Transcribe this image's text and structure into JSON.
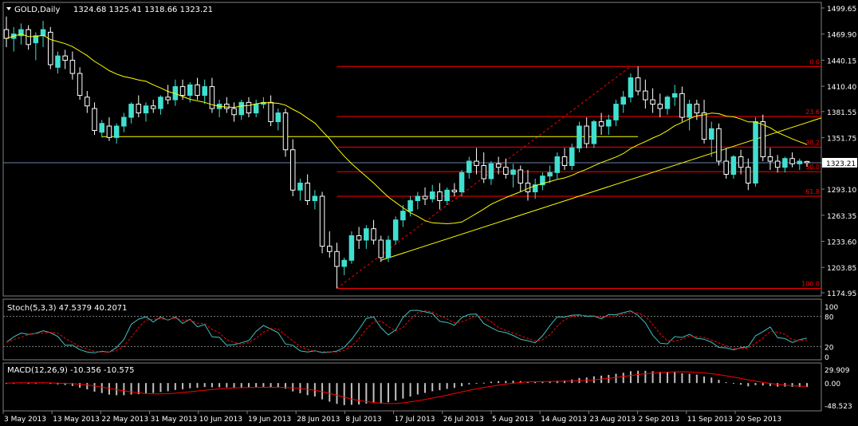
{
  "header": {
    "title": "GOLD,Daily",
    "ohlc": "1324.68 1325.41 1318.66 1323.21"
  },
  "colors": {
    "background": "#000000",
    "frame": "#808080",
    "bull": "#40e0d0",
    "bear": "#ffffff",
    "ma": "#ffff00",
    "fib": "#ff0000",
    "price_line": "#6a80a8",
    "stoch_main": "#40c0c0",
    "stoch_signal": "#ff0000",
    "macd_hist": "#c0c0c0",
    "macd_signal": "#ff0000"
  },
  "price_axis": {
    "ticks": [
      "1499.65",
      "1469.90",
      "1440.15",
      "1410.40",
      "1381.55",
      "1351.75",
      "1323.21",
      "1293.10",
      "1263.35",
      "1233.60",
      "1203.85",
      "1174.95"
    ],
    "current": "1323.21"
  },
  "fib_labels": [
    "0.0",
    "23.6",
    "38.2",
    "50.0",
    "61.8",
    "100.0"
  ],
  "date_labels": [
    "3 May 2013",
    "13 May 2013",
    "22 May 2013",
    "31 May 2013",
    "10 Jun 2013",
    "19 Jun 2013",
    "28 Jun 2013",
    "8 Jul 2013",
    "17 Jul 2013",
    "26 Jul 2013",
    "5 Aug 2013",
    "14 Aug 2013",
    "23 Aug 2013",
    "2 Sep 2013",
    "11 Sep 2013",
    "20 Sep 2013"
  ],
  "stoch": {
    "label": "Stoch(5,3,3) 47.5379 40.2071",
    "ticks": [
      "100",
      "80",
      "20",
      "0"
    ]
  },
  "macd": {
    "label": "MACD(12,26,9) -10.356 -10.575",
    "ticks": [
      "29.909",
      "0.00",
      "-48.523"
    ]
  },
  "chart_data": {
    "type": "candlestick",
    "ylim": [
      1174.95,
      1499.65
    ],
    "candles": [
      [
        1475,
        1490,
        1455,
        1465
      ],
      [
        1465,
        1478,
        1450,
        1470
      ],
      [
        1468,
        1482,
        1458,
        1475
      ],
      [
        1475,
        1480,
        1452,
        1458
      ],
      [
        1460,
        1472,
        1440,
        1468
      ],
      [
        1468,
        1485,
        1455,
        1475
      ],
      [
        1472,
        1478,
        1430,
        1435
      ],
      [
        1432,
        1450,
        1425,
        1445
      ],
      [
        1445,
        1452,
        1430,
        1440
      ],
      [
        1440,
        1450,
        1418,
        1425
      ],
      [
        1425,
        1432,
        1395,
        1400
      ],
      [
        1398,
        1405,
        1380,
        1388
      ],
      [
        1385,
        1392,
        1355,
        1360
      ],
      [
        1358,
        1372,
        1352,
        1368
      ],
      [
        1365,
        1375,
        1348,
        1352
      ],
      [
        1352,
        1368,
        1345,
        1365
      ],
      [
        1365,
        1380,
        1358,
        1375
      ],
      [
        1375,
        1392,
        1368,
        1390
      ],
      [
        1390,
        1400,
        1375,
        1380
      ],
      [
        1380,
        1392,
        1370,
        1388
      ],
      [
        1388,
        1395,
        1380,
        1385
      ],
      [
        1385,
        1400,
        1378,
        1398
      ],
      [
        1398,
        1412,
        1390,
        1395
      ],
      [
        1395,
        1418,
        1388,
        1410
      ],
      [
        1410,
        1418,
        1395,
        1400
      ],
      [
        1400,
        1415,
        1392,
        1412
      ],
      [
        1412,
        1420,
        1395,
        1400
      ],
      [
        1400,
        1418,
        1390,
        1410
      ],
      [
        1410,
        1420,
        1380,
        1385
      ],
      [
        1385,
        1395,
        1375,
        1390
      ],
      [
        1390,
        1398,
        1380,
        1385
      ],
      [
        1385,
        1392,
        1370,
        1378
      ],
      [
        1378,
        1395,
        1372,
        1392
      ],
      [
        1392,
        1398,
        1375,
        1380
      ],
      [
        1380,
        1395,
        1375,
        1390
      ],
      [
        1390,
        1398,
        1385,
        1392
      ],
      [
        1392,
        1400,
        1365,
        1370
      ],
      [
        1370,
        1385,
        1360,
        1380
      ],
      [
        1380,
        1385,
        1330,
        1338
      ],
      [
        1338,
        1350,
        1285,
        1292
      ],
      [
        1292,
        1305,
        1280,
        1300
      ],
      [
        1300,
        1310,
        1275,
        1280
      ],
      [
        1280,
        1292,
        1270,
        1285
      ],
      [
        1285,
        1290,
        1220,
        1228
      ],
      [
        1228,
        1245,
        1215,
        1222
      ],
      [
        1222,
        1232,
        1180,
        1205
      ],
      [
        1205,
        1215,
        1195,
        1212
      ],
      [
        1212,
        1245,
        1208,
        1240
      ],
      [
        1240,
        1250,
        1225,
        1235
      ],
      [
        1235,
        1252,
        1225,
        1248
      ],
      [
        1248,
        1258,
        1230,
        1235
      ],
      [
        1235,
        1240,
        1210,
        1215
      ],
      [
        1215,
        1240,
        1210,
        1235
      ],
      [
        1235,
        1262,
        1230,
        1258
      ],
      [
        1258,
        1275,
        1250,
        1268
      ],
      [
        1268,
        1285,
        1262,
        1280
      ],
      [
        1280,
        1290,
        1270,
        1285
      ],
      [
        1285,
        1295,
        1275,
        1282
      ],
      [
        1282,
        1298,
        1278,
        1290
      ],
      [
        1290,
        1300,
        1270,
        1280
      ],
      [
        1280,
        1295,
        1275,
        1292
      ],
      [
        1292,
        1300,
        1285,
        1290
      ],
      [
        1290,
        1315,
        1285,
        1312
      ],
      [
        1312,
        1330,
        1305,
        1325
      ],
      [
        1325,
        1340,
        1310,
        1320
      ],
      [
        1320,
        1335,
        1300,
        1305
      ],
      [
        1305,
        1325,
        1298,
        1322
      ],
      [
        1322,
        1330,
        1310,
        1318
      ],
      [
        1318,
        1328,
        1305,
        1310
      ],
      [
        1310,
        1322,
        1295,
        1315
      ],
      [
        1315,
        1320,
        1290,
        1300
      ],
      [
        1300,
        1315,
        1280,
        1290
      ],
      [
        1290,
        1305,
        1282,
        1298
      ],
      [
        1298,
        1312,
        1292,
        1308
      ],
      [
        1308,
        1320,
        1300,
        1312
      ],
      [
        1312,
        1335,
        1305,
        1330
      ],
      [
        1330,
        1340,
        1315,
        1320
      ],
      [
        1320,
        1345,
        1315,
        1340
      ],
      [
        1340,
        1370,
        1335,
        1365
      ],
      [
        1365,
        1375,
        1340,
        1345
      ],
      [
        1345,
        1372,
        1340,
        1370
      ],
      [
        1370,
        1380,
        1355,
        1365
      ],
      [
        1365,
        1378,
        1355,
        1372
      ],
      [
        1372,
        1395,
        1365,
        1390
      ],
      [
        1390,
        1405,
        1380,
        1398
      ],
      [
        1398,
        1425,
        1392,
        1420
      ],
      [
        1420,
        1433,
        1400,
        1405
      ],
      [
        1405,
        1418,
        1385,
        1395
      ],
      [
        1395,
        1408,
        1380,
        1390
      ],
      [
        1390,
        1402,
        1375,
        1385
      ],
      [
        1385,
        1400,
        1378,
        1398
      ],
      [
        1398,
        1412,
        1388,
        1402
      ],
      [
        1402,
        1410,
        1370,
        1375
      ],
      [
        1375,
        1395,
        1360,
        1390
      ],
      [
        1390,
        1395,
        1372,
        1380
      ],
      [
        1380,
        1395,
        1345,
        1350
      ],
      [
        1350,
        1370,
        1330,
        1362
      ],
      [
        1362,
        1368,
        1320,
        1325
      ],
      [
        1325,
        1340,
        1305,
        1310
      ],
      [
        1310,
        1332,
        1305,
        1330
      ],
      [
        1330,
        1338,
        1310,
        1318
      ],
      [
        1318,
        1328,
        1292,
        1300
      ],
      [
        1300,
        1375,
        1296,
        1370
      ],
      [
        1370,
        1378,
        1325,
        1330
      ],
      [
        1330,
        1340,
        1315,
        1325
      ],
      [
        1325,
        1332,
        1312,
        1318
      ],
      [
        1318,
        1330,
        1312,
        1328
      ],
      [
        1328,
        1335,
        1318,
        1322
      ],
      [
        1322,
        1328,
        1315,
        1325
      ],
      [
        1324.68,
        1325.41,
        1318.66,
        1323.21
      ]
    ],
    "ma_period": 20,
    "fib_levels": {
      "0.0": 1433,
      "23.6": 1376,
      "38.2": 1341,
      "50.0": 1313,
      "61.8": 1285,
      "100.0": 1180
    },
    "support_level": 1353,
    "trendline": {
      "from_index": 51,
      "from_price": 1212,
      "to_index": 116,
      "to_price": 1388
    },
    "fib_anchor": {
      "low_index": 45,
      "low_price": 1180,
      "high_index": 85,
      "high_price": 1433
    },
    "stoch_range": [
      0,
      100
    ],
    "macd_range": [
      -48.523,
      29.909
    ]
  }
}
